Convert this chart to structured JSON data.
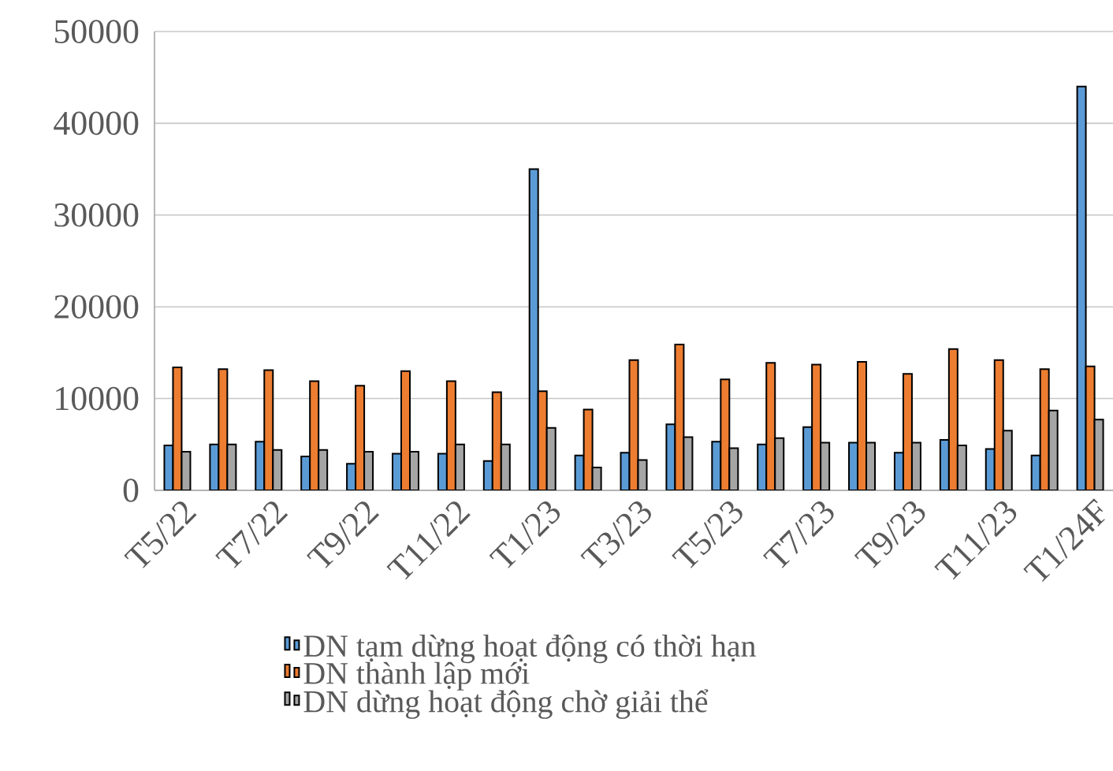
{
  "chart_data": {
    "type": "bar",
    "categories": [
      "T5/22",
      null,
      "T7/22",
      null,
      "T9/22",
      null,
      "T11/22",
      null,
      "T1/23",
      null,
      "T3/23",
      null,
      "T5/23",
      null,
      "T7/23",
      null,
      "T9/23",
      null,
      "T11/23",
      null,
      "T1/24F"
    ],
    "series": [
      {
        "name": "DN tạm dừng hoạt động có thời hạn",
        "color": "#5b9bd5",
        "values": [
          4900,
          5000,
          5300,
          3700,
          2900,
          4000,
          4000,
          3200,
          35000,
          3800,
          4100,
          7200,
          5300,
          5000,
          6900,
          5200,
          4100,
          5500,
          4500,
          3800,
          44000
        ]
      },
      {
        "name": "DN thành lập mới",
        "color": "#ed7d31",
        "values": [
          13400,
          13200,
          13100,
          11900,
          11400,
          13000,
          11900,
          10700,
          10800,
          8800,
          14200,
          15900,
          12100,
          13900,
          13700,
          14000,
          12700,
          15400,
          14200,
          13200,
          13500
        ]
      },
      {
        "name": "DN dừng hoạt động chờ giải thể",
        "color": "#a5a5a5",
        "values": [
          4200,
          5000,
          4400,
          4400,
          4200,
          4200,
          5000,
          5000,
          6800,
          2500,
          3300,
          5800,
          4600,
          5700,
          5200,
          5200,
          5200,
          4900,
          6500,
          8700,
          7700
        ]
      }
    ],
    "ylim": [
      0,
      50000
    ],
    "yticks": [
      0,
      10000,
      20000,
      30000,
      40000,
      50000
    ],
    "grid": "y",
    "legend": "bottom"
  }
}
